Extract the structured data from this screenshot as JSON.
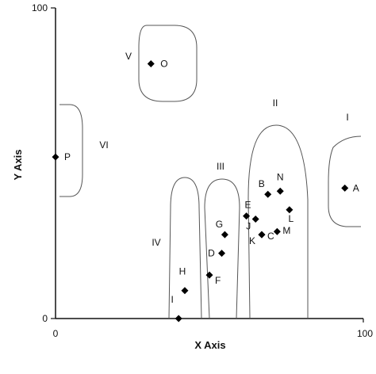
{
  "chart_data": {
    "type": "scatter",
    "title": "",
    "xlabel": "X Axis",
    "ylabel": "Y Axis",
    "xlim": [
      0,
      100
    ],
    "ylim": [
      0,
      100
    ],
    "x_ticks": [
      "0",
      "100"
    ],
    "y_ticks": [
      "0",
      "100"
    ],
    "grid": false,
    "points": [
      {
        "label": "A",
        "x": 94,
        "y": 42
      },
      {
        "label": "B",
        "x": 69,
        "y": 40
      },
      {
        "label": "C",
        "x": 67,
        "y": 27
      },
      {
        "label": "D",
        "x": 54,
        "y": 21
      },
      {
        "label": "E",
        "x": 62,
        "y": 33
      },
      {
        "label": "F",
        "x": 50,
        "y": 14
      },
      {
        "label": "G",
        "x": 55,
        "y": 27
      },
      {
        "label": "H",
        "x": 42,
        "y": 9
      },
      {
        "label": "I",
        "x": 40,
        "y": 0
      },
      {
        "label": "J",
        "x": 65,
        "y": 32
      },
      {
        "label": "K",
        "x": 67,
        "y": 27
      },
      {
        "label": "L",
        "x": 76,
        "y": 35
      },
      {
        "label": "M",
        "x": 72,
        "y": 28
      },
      {
        "label": "N",
        "x": 73,
        "y": 41
      },
      {
        "label": "O",
        "x": 31,
        "y": 82
      },
      {
        "label": "P",
        "x": 0,
        "y": 52
      }
    ],
    "regions": [
      {
        "label": "I"
      },
      {
        "label": "II"
      },
      {
        "label": "III"
      },
      {
        "label": "IV"
      },
      {
        "label": "V"
      },
      {
        "label": "VI"
      }
    ]
  }
}
